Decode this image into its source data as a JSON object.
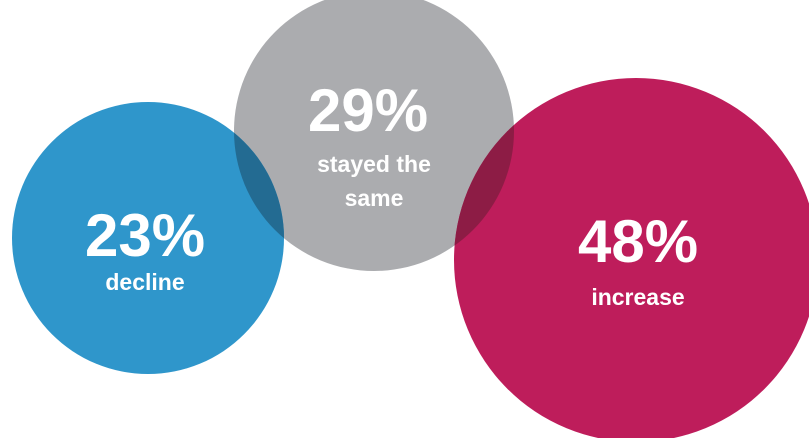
{
  "chart_data": {
    "type": "bubble",
    "series": [
      {
        "value": 29,
        "value_label": "29%",
        "label_lines": [
          "stayed the",
          "same"
        ],
        "color": "#abacaf"
      },
      {
        "value": 23,
        "value_label": "23%",
        "label_lines": [
          "decline"
        ],
        "color": "#2f96cb"
      },
      {
        "value": 48,
        "value_label": "48%",
        "label_lines": [
          "increase"
        ],
        "color": "#be1d5b"
      }
    ],
    "overlap_colors": {
      "decline_and_stayed_the_same": "#236b92",
      "stayed_the_same_and_increase": "#8d1c45"
    }
  }
}
